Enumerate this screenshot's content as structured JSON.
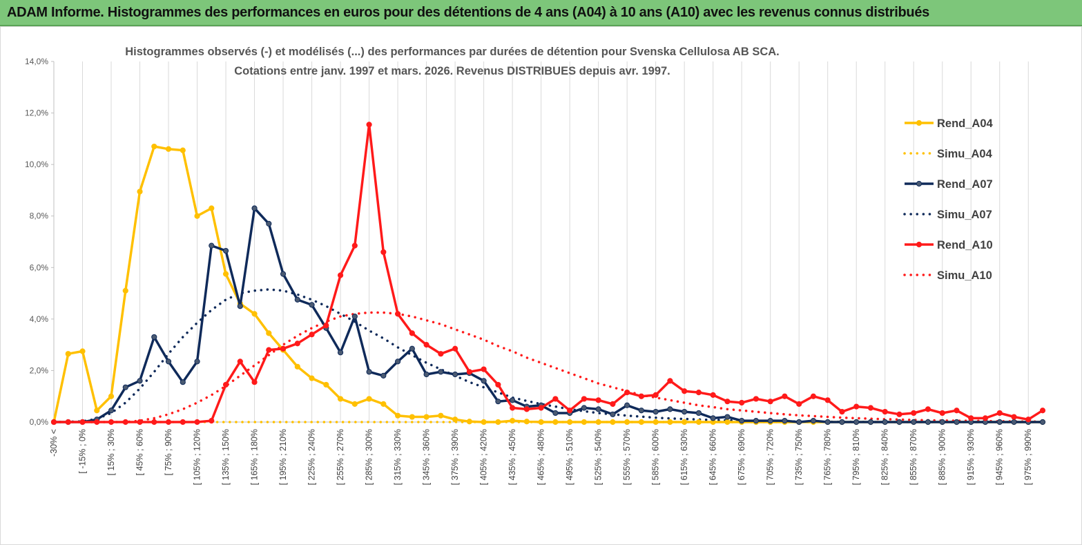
{
  "header": {
    "title": "ADAM Informe. Histogrammes des performances en euros pour des détentions de 4 ans (A04) à 10 ans (A10) avec les revenus connus distribués"
  },
  "chart_data": {
    "type": "line",
    "title_line1": "Histogrammes observés (-) et modélisés (...) des performances par durées de détention pour Svenska Cellulosa AB SCA.",
    "title_line2": "Cotations entre janv. 1997 et mars. 2026. Revenus DISTRIBUES depuis avr. 1997.",
    "xlabel": "",
    "ylabel": "",
    "ylim": [
      0,
      14
    ],
    "y_ticks": [
      "0,0%",
      "2,0%",
      "4,0%",
      "6,0%",
      "8,0%",
      "10,0%",
      "12,0%",
      "14,0%"
    ],
    "y_tick_values": [
      0,
      2,
      4,
      6,
      8,
      10,
      12,
      14
    ],
    "grid": "vertical lines at labeled categories",
    "legend_position": "right",
    "categories": [
      "-30% <",
      "[ -30% ; -15% [",
      "[ -15% ; 0% [",
      "[ 0% ; 15% [",
      "[ 15% ; 30% [",
      "[ 30% ; 45% [",
      "[ 45% ; 60% [",
      "[ 60% ; 75% [",
      "[ 75% ; 90% [",
      "[ 90% ; 105% [",
      "[ 105% ; 120% [",
      "[ 120% ; 135% [",
      "[ 135% ; 150% [",
      "[ 150% ; 165% [",
      "[ 165% ; 180% [",
      "[ 180% ; 195% [",
      "[ 195% ; 210% [",
      "[ 210% ; 225% [",
      "[ 225% ; 240% [",
      "[ 240% ; 255% [",
      "[ 255% ; 270% [",
      "[ 270% ; 285% [",
      "[ 285% ; 300% [",
      "[ 300% ; 315% [",
      "[ 315% ; 330% [",
      "[ 330% ; 345% [",
      "[ 345% ; 360% [",
      "[ 360% ; 375% [",
      "[ 375% ; 390% [",
      "[ 390% ; 405% [",
      "[ 405% ; 420% [",
      "[ 420% ; 435% [",
      "[ 435% ; 450% [",
      "[ 450% ; 465% [",
      "[ 465% ; 480% [",
      "[ 480% ; 495% [",
      "[ 495% ; 510% [",
      "[ 510% ; 525% [",
      "[ 525% ; 540% [",
      "[ 540% ; 555% [",
      "[ 555% ; 570% [",
      "[ 570% ; 585% [",
      "[ 585% ; 600% [",
      "[ 600% ; 615% [",
      "[ 615% ; 630% [",
      "[ 630% ; 645% [",
      "[ 645% ; 660% [",
      "[ 660% ; 675% [",
      "[ 675% ; 690% [",
      "[ 690% ; 705% [",
      "[ 705% ; 720% [",
      "[ 720% ; 735% [",
      "[ 735% ; 750% [",
      "[ 750% ; 765% [",
      "[ 765% ; 780% [",
      "[ 780% ; 795% [",
      "[ 795% ; 810% [",
      "[ 810% ; 825% [",
      "[ 825% ; 840% [",
      "[ 840% ; 855% [",
      "[ 855% ; 870% [",
      "[ 870% ; 885% [",
      "[ 885% ; 900% [",
      "[ 900% ; 915% [",
      "[ 915% ; 930% [",
      "[ 930% ; 945% [",
      "[ 945% ; 960% [",
      "[ 960% ; 975% [",
      "[ 975% ; 990% [",
      "> 990%"
    ],
    "x_tick_labels": [
      "-30% <",
      "[ -15% ; 0%",
      "[ 15% ; 30%",
      "[ 45% ; 60%",
      "[ 75% ; 90%",
      "[ 105% ; 120%",
      "[ 135% ; 150%",
      "[ 165% ; 180%",
      "[ 195% ; 210%",
      "[ 225% ; 240%",
      "[ 255% ; 270%",
      "[ 285% ; 300%",
      "[ 315% ; 330%",
      "[ 345% ; 360%",
      "[ 375% ; 390%",
      "[ 405% ; 420%",
      "[ 435% ; 450%",
      "[ 465% ; 480%",
      "[ 495% ; 510%",
      "[ 525% ; 540%",
      "[ 555% ; 570%",
      "[ 585% ; 600%",
      "[ 615% ; 630%",
      "[ 645% ; 660%",
      "[ 675% ; 690%",
      "[ 705% ; 720%",
      "[ 735% ; 750%",
      "[ 765% ; 780%",
      "[ 795% ; 810%",
      "[ 825% ; 840%",
      "[ 855% ; 870%",
      "[ 885% ; 900%",
      "[ 915% ; 930%",
      "[ 945% ; 960%",
      "[ 975% ; 990%"
    ],
    "x_tick_category_index": [
      0,
      2,
      4,
      6,
      8,
      10,
      12,
      14,
      16,
      18,
      20,
      22,
      24,
      26,
      28,
      30,
      32,
      34,
      36,
      38,
      40,
      42,
      44,
      46,
      48,
      50,
      52,
      54,
      56,
      58,
      60,
      62,
      64,
      66,
      68
    ],
    "series": [
      {
        "name": "Rend_A04",
        "style": "solid",
        "color": "#ffc000",
        "values": [
          0,
          2.65,
          2.75,
          0.45,
          1.0,
          5.1,
          8.95,
          10.7,
          10.6,
          10.55,
          8.0,
          8.3,
          5.75,
          4.6,
          4.2,
          3.45,
          2.8,
          2.15,
          1.7,
          1.45,
          0.9,
          0.7,
          0.9,
          0.7,
          0.25,
          0.2,
          0.2,
          0.25,
          0.1,
          0.02,
          0,
          0,
          0.05,
          0.02,
          0,
          0,
          0,
          0,
          0,
          0,
          0,
          0,
          0,
          0,
          0,
          0,
          0,
          0,
          0,
          0,
          0,
          0,
          0,
          0,
          0,
          0,
          0,
          0,
          0,
          0,
          0,
          0,
          0,
          0,
          0,
          0,
          0,
          0,
          0,
          0
        ]
      },
      {
        "name": "Simu_A04",
        "style": "dotted",
        "color": "#ffc000",
        "values": [
          0,
          0,
          0,
          0,
          0,
          0,
          0,
          0,
          0,
          0,
          0,
          0,
          0,
          0,
          0,
          0,
          0,
          0,
          0,
          0,
          0,
          0,
          0,
          0,
          0,
          0,
          0,
          0,
          0,
          0,
          0,
          0,
          0,
          0,
          0,
          0,
          0,
          0,
          0,
          0,
          0,
          0,
          0,
          0,
          0,
          0,
          0,
          0,
          0,
          0,
          0,
          0,
          0,
          0,
          0,
          0,
          0,
          0,
          0,
          0,
          0,
          0,
          0,
          0,
          0,
          0,
          0,
          0,
          0,
          0
        ]
      },
      {
        "name": "Rend_A07",
        "style": "solid",
        "color": "#0f2a5a",
        "values": [
          0,
          0,
          0,
          0.1,
          0.45,
          1.35,
          1.6,
          3.3,
          2.35,
          1.55,
          2.35,
          6.85,
          6.65,
          4.5,
          8.3,
          7.7,
          5.75,
          4.75,
          4.55,
          3.65,
          2.7,
          4.1,
          1.95,
          1.8,
          2.35,
          2.85,
          1.85,
          1.95,
          1.85,
          1.9,
          1.6,
          0.8,
          0.85,
          0.6,
          0.65,
          0.35,
          0.35,
          0.55,
          0.5,
          0.3,
          0.65,
          0.45,
          0.4,
          0.5,
          0.4,
          0.35,
          0.15,
          0.2,
          0.05,
          0.05,
          0.05,
          0.05,
          0,
          0.05,
          0,
          0,
          0,
          0,
          0,
          0,
          0,
          0,
          0,
          0,
          0,
          0,
          0,
          0,
          0,
          0
        ]
      },
      {
        "name": "Simu_A07",
        "style": "dotted",
        "color": "#0f2a5a",
        "values": [
          0,
          0.01,
          0.03,
          0.12,
          0.35,
          0.75,
          1.3,
          1.95,
          2.65,
          3.3,
          3.85,
          4.35,
          4.75,
          5.0,
          5.1,
          5.15,
          5.1,
          4.95,
          4.75,
          4.5,
          4.2,
          3.9,
          3.55,
          3.25,
          2.9,
          2.6,
          2.3,
          2.05,
          1.8,
          1.55,
          1.35,
          1.15,
          0.95,
          0.82,
          0.7,
          0.6,
          0.5,
          0.42,
          0.35,
          0.3,
          0.25,
          0.21,
          0.17,
          0.14,
          0.12,
          0.1,
          0.08,
          0.07,
          0.05,
          0.04,
          0.035,
          0.03,
          0.02,
          0.015,
          0.01,
          0.01,
          0.01,
          0,
          0,
          0,
          0,
          0,
          0,
          0,
          0,
          0,
          0,
          0,
          0,
          0
        ]
      },
      {
        "name": "Rend_A10",
        "style": "solid",
        "color": "#ff1a1a",
        "values": [
          0,
          0,
          0,
          0,
          0,
          0,
          0,
          0,
          0,
          0,
          0,
          0.05,
          1.45,
          2.35,
          1.55,
          2.8,
          2.85,
          3.05,
          3.4,
          3.75,
          5.7,
          6.85,
          11.55,
          6.6,
          4.2,
          3.45,
          3.0,
          2.65,
          2.85,
          1.95,
          2.05,
          1.45,
          0.55,
          0.5,
          0.55,
          0.9,
          0.45,
          0.9,
          0.85,
          0.7,
          1.15,
          1.0,
          1.05,
          1.6,
          1.2,
          1.15,
          1.05,
          0.8,
          0.75,
          0.9,
          0.8,
          1.0,
          0.7,
          1.0,
          0.85,
          0.4,
          0.6,
          0.55,
          0.4,
          0.3,
          0.35,
          0.5,
          0.35,
          0.45,
          0.15,
          0.15,
          0.35,
          0.2,
          0.1,
          0.45
        ]
      },
      {
        "name": "Simu_A10",
        "style": "dotted",
        "color": "#ff1a1a",
        "values": [
          0,
          0,
          0,
          0,
          0,
          0,
          0.05,
          0.15,
          0.3,
          0.5,
          0.75,
          1.05,
          1.4,
          1.8,
          2.2,
          2.6,
          3.0,
          3.35,
          3.65,
          3.9,
          4.1,
          4.2,
          4.25,
          4.25,
          4.2,
          4.1,
          3.95,
          3.8,
          3.6,
          3.4,
          3.2,
          2.95,
          2.75,
          2.5,
          2.3,
          2.1,
          1.9,
          1.7,
          1.5,
          1.35,
          1.2,
          1.05,
          0.95,
          0.85,
          0.75,
          0.65,
          0.58,
          0.5,
          0.45,
          0.4,
          0.35,
          0.3,
          0.26,
          0.23,
          0.2,
          0.17,
          0.15,
          0.13,
          0.11,
          0.1,
          0.08,
          0.07,
          0.06,
          0.05,
          0.05,
          0.04,
          0.03,
          0.03,
          0.02,
          0.02
        ]
      }
    ]
  }
}
